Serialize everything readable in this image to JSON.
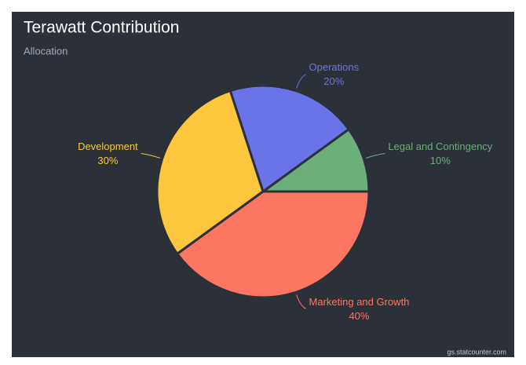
{
  "chart_data": {
    "type": "pie",
    "title": "Terawatt Contribution",
    "subtitle": "Allocation",
    "categories": [
      "Legal and Contingency",
      "Operations",
      "Development",
      "Marketing and Growth"
    ],
    "values": [
      10,
      20,
      30,
      40
    ],
    "value_labels": [
      "10%",
      "20%",
      "30%",
      "40%"
    ],
    "colors": [
      "#6caf7b",
      "#6a74e8",
      "#fdc63d",
      "#fd7661"
    ],
    "credit": "gs.statcounter.com"
  }
}
